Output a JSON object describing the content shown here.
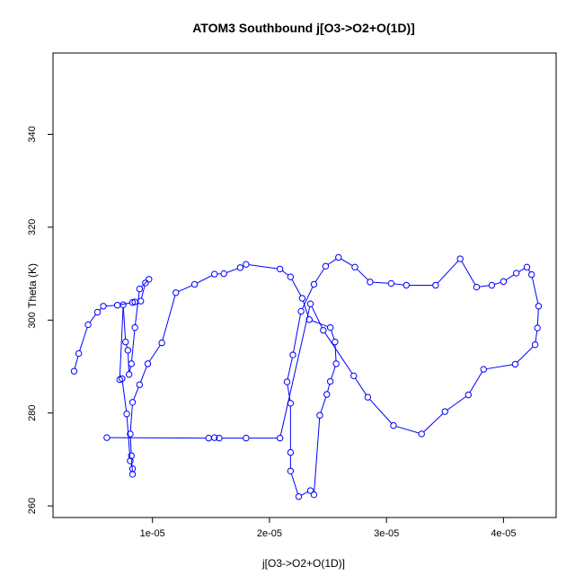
{
  "chart_data": {
    "type": "line",
    "title": "ATOM3 Southbound j[O3->O2+O(1D)]",
    "xlabel": "j[O3->O2+O(1D)]",
    "ylabel": "Theta (K)",
    "xlim": [
      1.5e-06,
      4.45e-05
    ],
    "ylim": [
      257.5,
      357.5
    ],
    "xticks": [
      1e-05,
      2e-05,
      3e-05,
      4e-05
    ],
    "xtick_labels": [
      "1e-05",
      "2e-05",
      "3e-05",
      "4e-05"
    ],
    "yticks": [
      260,
      280,
      300,
      320,
      340
    ],
    "ytick_labels": [
      "260",
      "280",
      "300",
      "320",
      "340"
    ],
    "grid": false,
    "legend": "none",
    "series_color": "#0000ff",
    "series": [
      {
        "marker": "open-circle",
        "x": [
          3.3e-06,
          3.7e-06,
          4.5e-06,
          5.3e-06,
          5.8e-06,
          7e-06,
          8.3e-06,
          8.5e-06,
          9e-06,
          9.4e-06,
          9.7e-06,
          8.9e-06,
          8.5e-06,
          8.2e-06,
          8e-06,
          7.9e-06,
          7.7e-06,
          7.5e-06,
          7.2e-06,
          7.4e-06,
          7.8e-06,
          8.1e-06,
          8.3e-06,
          8.3e-06,
          8.2e-06,
          8.1e-06,
          8.3e-06,
          8.9e-06,
          9.6e-06,
          1.08e-05,
          1.2e-05,
          1.36e-05,
          1.53e-05,
          1.61e-05,
          1.75e-05,
          1.8e-05,
          2.09e-05,
          2.18e-05,
          2.28e-05,
          2.34e-05,
          2.52e-05,
          2.56e-05,
          2.57e-05,
          2.52e-05,
          2.49e-05,
          2.43e-05,
          2.38e-05,
          2.35e-05,
          2.25e-05,
          2.18e-05,
          2.18e-05,
          2.18e-05,
          2.15e-05,
          2.2e-05,
          2.27e-05,
          2.38e-05,
          2.48e-05,
          2.59e-05,
          2.73e-05,
          2.86e-05,
          3.04e-05,
          3.17e-05,
          3.42e-05,
          3.63e-05,
          3.77e-05,
          3.9e-05,
          4e-05,
          4.11e-05,
          4.2e-05,
          4.24e-05,
          4.3e-05,
          4.29e-05,
          4.27e-05,
          4.1e-05,
          3.83e-05,
          3.7e-05,
          3.5e-05,
          3.3e-05,
          3.06e-05,
          2.84e-05,
          2.72e-05,
          2.46e-05,
          2.35e-05,
          2.09e-05,
          1.8e-05,
          1.57e-05,
          1.53e-05,
          1.48e-05,
          6.1e-06
        ],
        "y": [
          289.0,
          292.8,
          299.0,
          301.7,
          303.0,
          303.2,
          303.8,
          303.9,
          304.1,
          308.0,
          308.8,
          306.7,
          298.4,
          290.6,
          288.3,
          293.5,
          295.3,
          303.3,
          287.2,
          287.4,
          279.8,
          269.7,
          268.0,
          266.8,
          270.8,
          275.5,
          282.3,
          286.1,
          290.6,
          295.1,
          305.9,
          307.7,
          309.9,
          310.0,
          311.3,
          312.0,
          311.0,
          309.3,
          304.7,
          300.1,
          298.4,
          295.3,
          290.6,
          286.8,
          284.0,
          279.5,
          262.4,
          263.3,
          262.0,
          267.5,
          271.5,
          282.1,
          286.7,
          292.5,
          301.9,
          307.7,
          311.6,
          313.5,
          311.4,
          308.2,
          307.9,
          307.5,
          307.5,
          313.2,
          307.1,
          307.5,
          308.3,
          310.1,
          311.4,
          309.8,
          303.0,
          298.3,
          294.7,
          290.5,
          289.4,
          283.9,
          280.3,
          275.5,
          277.3,
          283.4,
          288.0,
          297.8,
          303.5,
          274.6,
          274.6,
          274.6,
          274.7,
          274.6,
          274.7
        ]
      }
    ]
  }
}
